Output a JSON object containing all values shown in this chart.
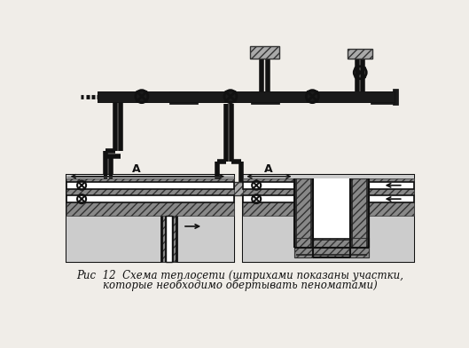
{
  "background_color": "#f0ede8",
  "line_color": "#111111",
  "title_line1": "Рис  12  Схема теплосети (штрихами показаны участки,",
  "title_line2": "которые необходимо обертывать пеноматами)",
  "title_fontsize": 8.5,
  "fig_width": 5.29,
  "fig_height": 3.92,
  "dpi": 100
}
